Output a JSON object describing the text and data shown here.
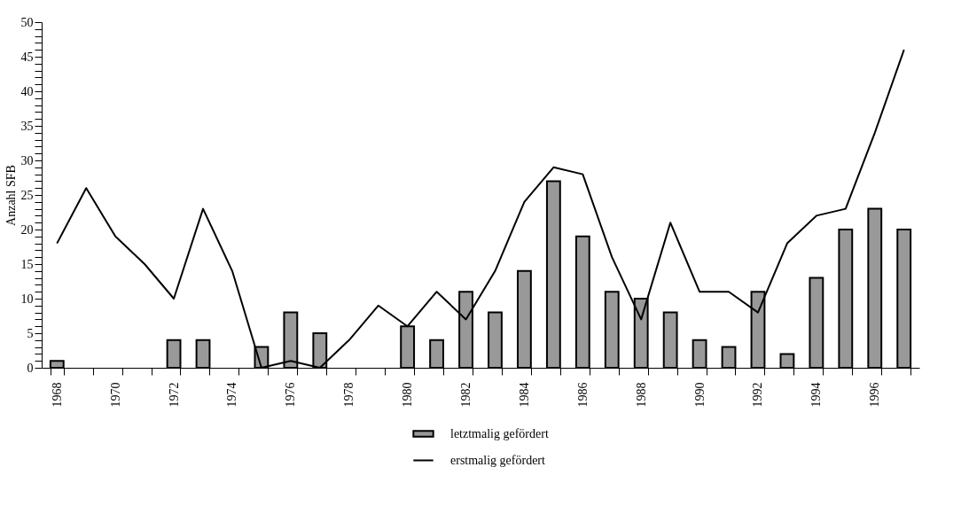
{
  "chart_data": {
    "type": "bar",
    "ylabel": "Anzahl SFB",
    "categories": [
      "1968",
      null,
      "1970",
      null,
      "1972",
      null,
      "1974",
      null,
      "1976",
      null,
      "1978",
      null,
      "1980",
      null,
      "1982",
      null,
      "1984",
      null,
      "1986",
      null,
      "1988",
      null,
      "1990",
      null,
      "1992",
      null,
      "1994",
      null,
      "1996",
      null
    ],
    "series": [
      {
        "name": "letztmalig gefördert",
        "color": "#999999",
        "values": [
          1,
          null,
          null,
          null,
          4,
          4,
          null,
          3,
          8,
          5,
          null,
          null,
          6,
          4,
          11,
          8,
          14,
          27,
          19,
          11,
          10,
          8,
          4,
          3,
          11,
          2,
          13,
          20,
          23,
          20
        ]
      },
      {
        "name": "erstmalig gefördert",
        "type": "line",
        "color": "#000000",
        "values": [
          18,
          26,
          19,
          15,
          10,
          23,
          14,
          0,
          1,
          0,
          4,
          9,
          6,
          11,
          7,
          14,
          24,
          29,
          28,
          16,
          7,
          21,
          11,
          11,
          8,
          18,
          22,
          23,
          34,
          46
        ]
      }
    ],
    "ylim": [
      0,
      50
    ],
    "yticks": [
      0,
      {
        "value": 1,
        "label": null
      },
      {
        "value": 2,
        "label": null
      },
      {
        "value": 3,
        "label": null
      },
      {
        "value": 4,
        "label": null
      },
      5,
      {
        "value": 6,
        "label": null
      },
      {
        "value": 7,
        "label": null
      },
      {
        "value": 8,
        "label": null
      },
      {
        "value": 9,
        "label": null
      },
      10,
      {
        "value": 11,
        "label": null
      },
      {
        "value": 12,
        "label": null
      },
      {
        "value": 13,
        "label": null
      },
      {
        "value": 14,
        "label": null
      },
      15,
      {
        "value": 16,
        "label": null
      },
      {
        "value": 17,
        "label": null
      },
      {
        "value": 18,
        "label": null
      },
      {
        "value": 19,
        "label": null
      },
      20,
      {
        "value": 21,
        "label": null
      },
      {
        "value": 22,
        "label": null
      },
      {
        "value": 23,
        "label": null
      },
      {
        "value": 24,
        "label": null
      },
      25,
      {
        "value": 26,
        "label": null
      },
      {
        "value": 27,
        "label": null
      },
      {
        "value": 28,
        "label": null
      },
      {
        "value": 29,
        "label": null
      },
      30,
      {
        "value": 31,
        "label": null
      },
      {
        "value": 32,
        "label": null
      },
      {
        "value": 33,
        "label": null
      },
      {
        "value": 34,
        "label": null
      },
      35,
      {
        "value": 36,
        "label": null
      },
      {
        "value": 37,
        "label": null
      },
      {
        "value": 38,
        "label": null
      },
      {
        "value": 39,
        "label": null
      },
      40,
      {
        "value": 41,
        "label": null
      },
      {
        "value": 42,
        "label": null
      },
      {
        "value": 43,
        "label": null
      },
      {
        "value": 44,
        "label": null
      },
      45,
      {
        "value": 46,
        "label": null
      },
      {
        "value": 47,
        "label": null
      },
      {
        "value": 48,
        "label": null
      },
      {
        "value": 49,
        "label": null
      },
      50
    ],
    "legend": "bottom",
    "grid": false
  }
}
